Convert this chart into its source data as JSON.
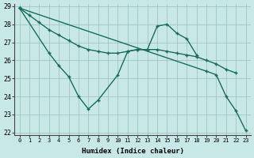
{
  "x_values": [
    0,
    1,
    2,
    3,
    4,
    5,
    6,
    7,
    8,
    9,
    10,
    11,
    12,
    13,
    14,
    15,
    16,
    17,
    18,
    19,
    20,
    21,
    22,
    23
  ],
  "line1": [
    28.9,
    28.5,
    28.1,
    27.7,
    27.4,
    27.1,
    26.8,
    26.6,
    26.5,
    26.4,
    26.4,
    26.5,
    26.6,
    26.6,
    26.6,
    26.5,
    26.4,
    26.3,
    26.2,
    26.0,
    25.8,
    25.5,
    25.3,
    null
  ],
  "line2": [
    28.9,
    null,
    null,
    26.4,
    25.7,
    25.1,
    24.0,
    23.3,
    23.8,
    null,
    25.2,
    26.5,
    26.6,
    26.6,
    27.9,
    28.0,
    27.5,
    27.2,
    26.3,
    null,
    null,
    null,
    null,
    null
  ],
  "line3": [
    28.9,
    null,
    null,
    null,
    null,
    null,
    null,
    null,
    null,
    null,
    null,
    null,
    null,
    null,
    null,
    null,
    null,
    null,
    null,
    25.4,
    25.2,
    24.0,
    23.2,
    22.1
  ],
  "background_color": "#c8e8e8",
  "line_color": "#1a6b5a",
  "xlabel": "Humidex (Indice chaleur)",
  "ylim": [
    22,
    29
  ],
  "xlim": [
    -0.5,
    23.5
  ],
  "yticks": [
    22,
    23,
    24,
    25,
    26,
    27,
    28,
    29
  ],
  "xticks": [
    0,
    1,
    2,
    3,
    4,
    5,
    6,
    7,
    8,
    9,
    10,
    11,
    12,
    13,
    14,
    15,
    16,
    17,
    18,
    19,
    20,
    21,
    22,
    23
  ]
}
